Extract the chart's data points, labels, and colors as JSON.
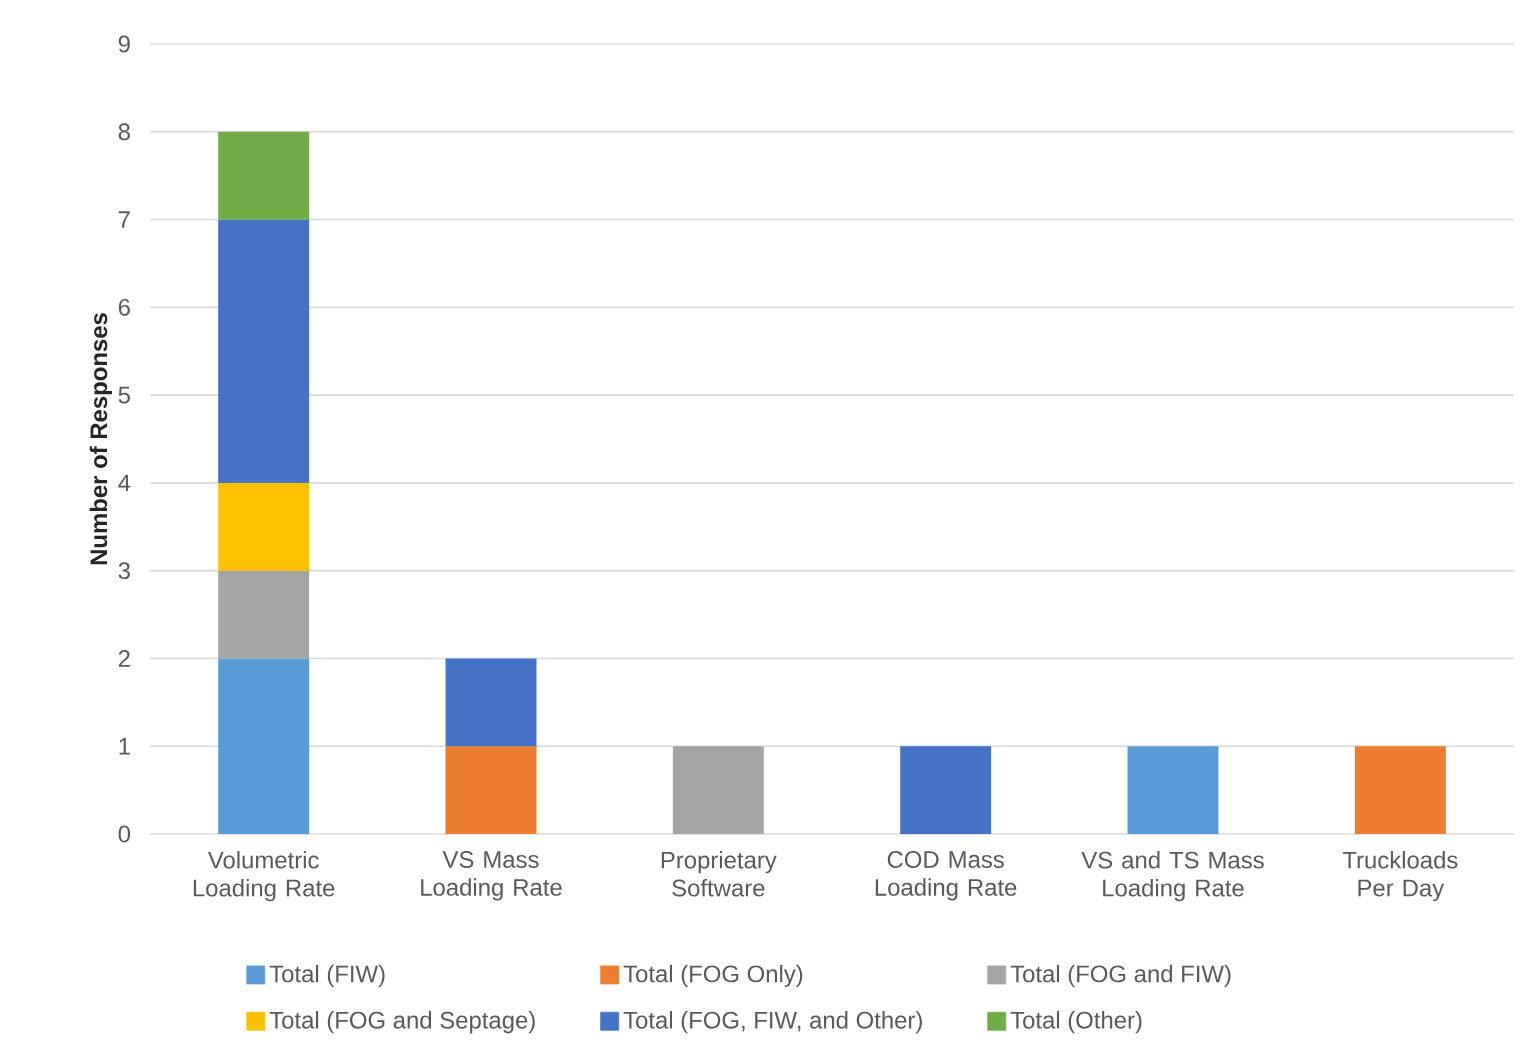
{
  "chart_data": {
    "type": "bar",
    "stacked": true,
    "ylabel": "Number of Responses",
    "categories": [
      "Volumetric Loading Rate",
      "VS Mass Loading Rate",
      "Proprietary Software",
      "COD Mass Loading Rate",
      "VS and TS Mass Loading Rate",
      "Truckloads Per Day"
    ],
    "series": [
      {
        "name": "Total (FIW)",
        "color": "#5b9bd5",
        "values": [
          2,
          null,
          null,
          null,
          1,
          null
        ]
      },
      {
        "name": "Total (FOG Only)",
        "color": "#ed7d31",
        "values": [
          null,
          1,
          null,
          null,
          null,
          1
        ]
      },
      {
        "name": "Total (FOG and FIW)",
        "color": "#a5a5a5",
        "values": [
          1,
          null,
          1,
          null,
          null,
          null
        ]
      },
      {
        "name": "Total (FOG and Septage)",
        "color": "#ffc000",
        "values": [
          1,
          null,
          null,
          null,
          null,
          null
        ]
      },
      {
        "name": "Total (FOG, FIW, and Other)",
        "color": "#4472c4",
        "values": [
          3,
          1,
          null,
          1,
          null,
          null
        ]
      },
      {
        "name": "Total (Other)",
        "color": "#70ad47",
        "values": [
          1,
          null,
          null,
          null,
          null,
          null
        ]
      }
    ],
    "ylim": [
      0,
      9
    ],
    "yticks": [
      0,
      1,
      2,
      3,
      4,
      5,
      6,
      7,
      8,
      9
    ],
    "grid": "y",
    "legend": "bottom"
  }
}
